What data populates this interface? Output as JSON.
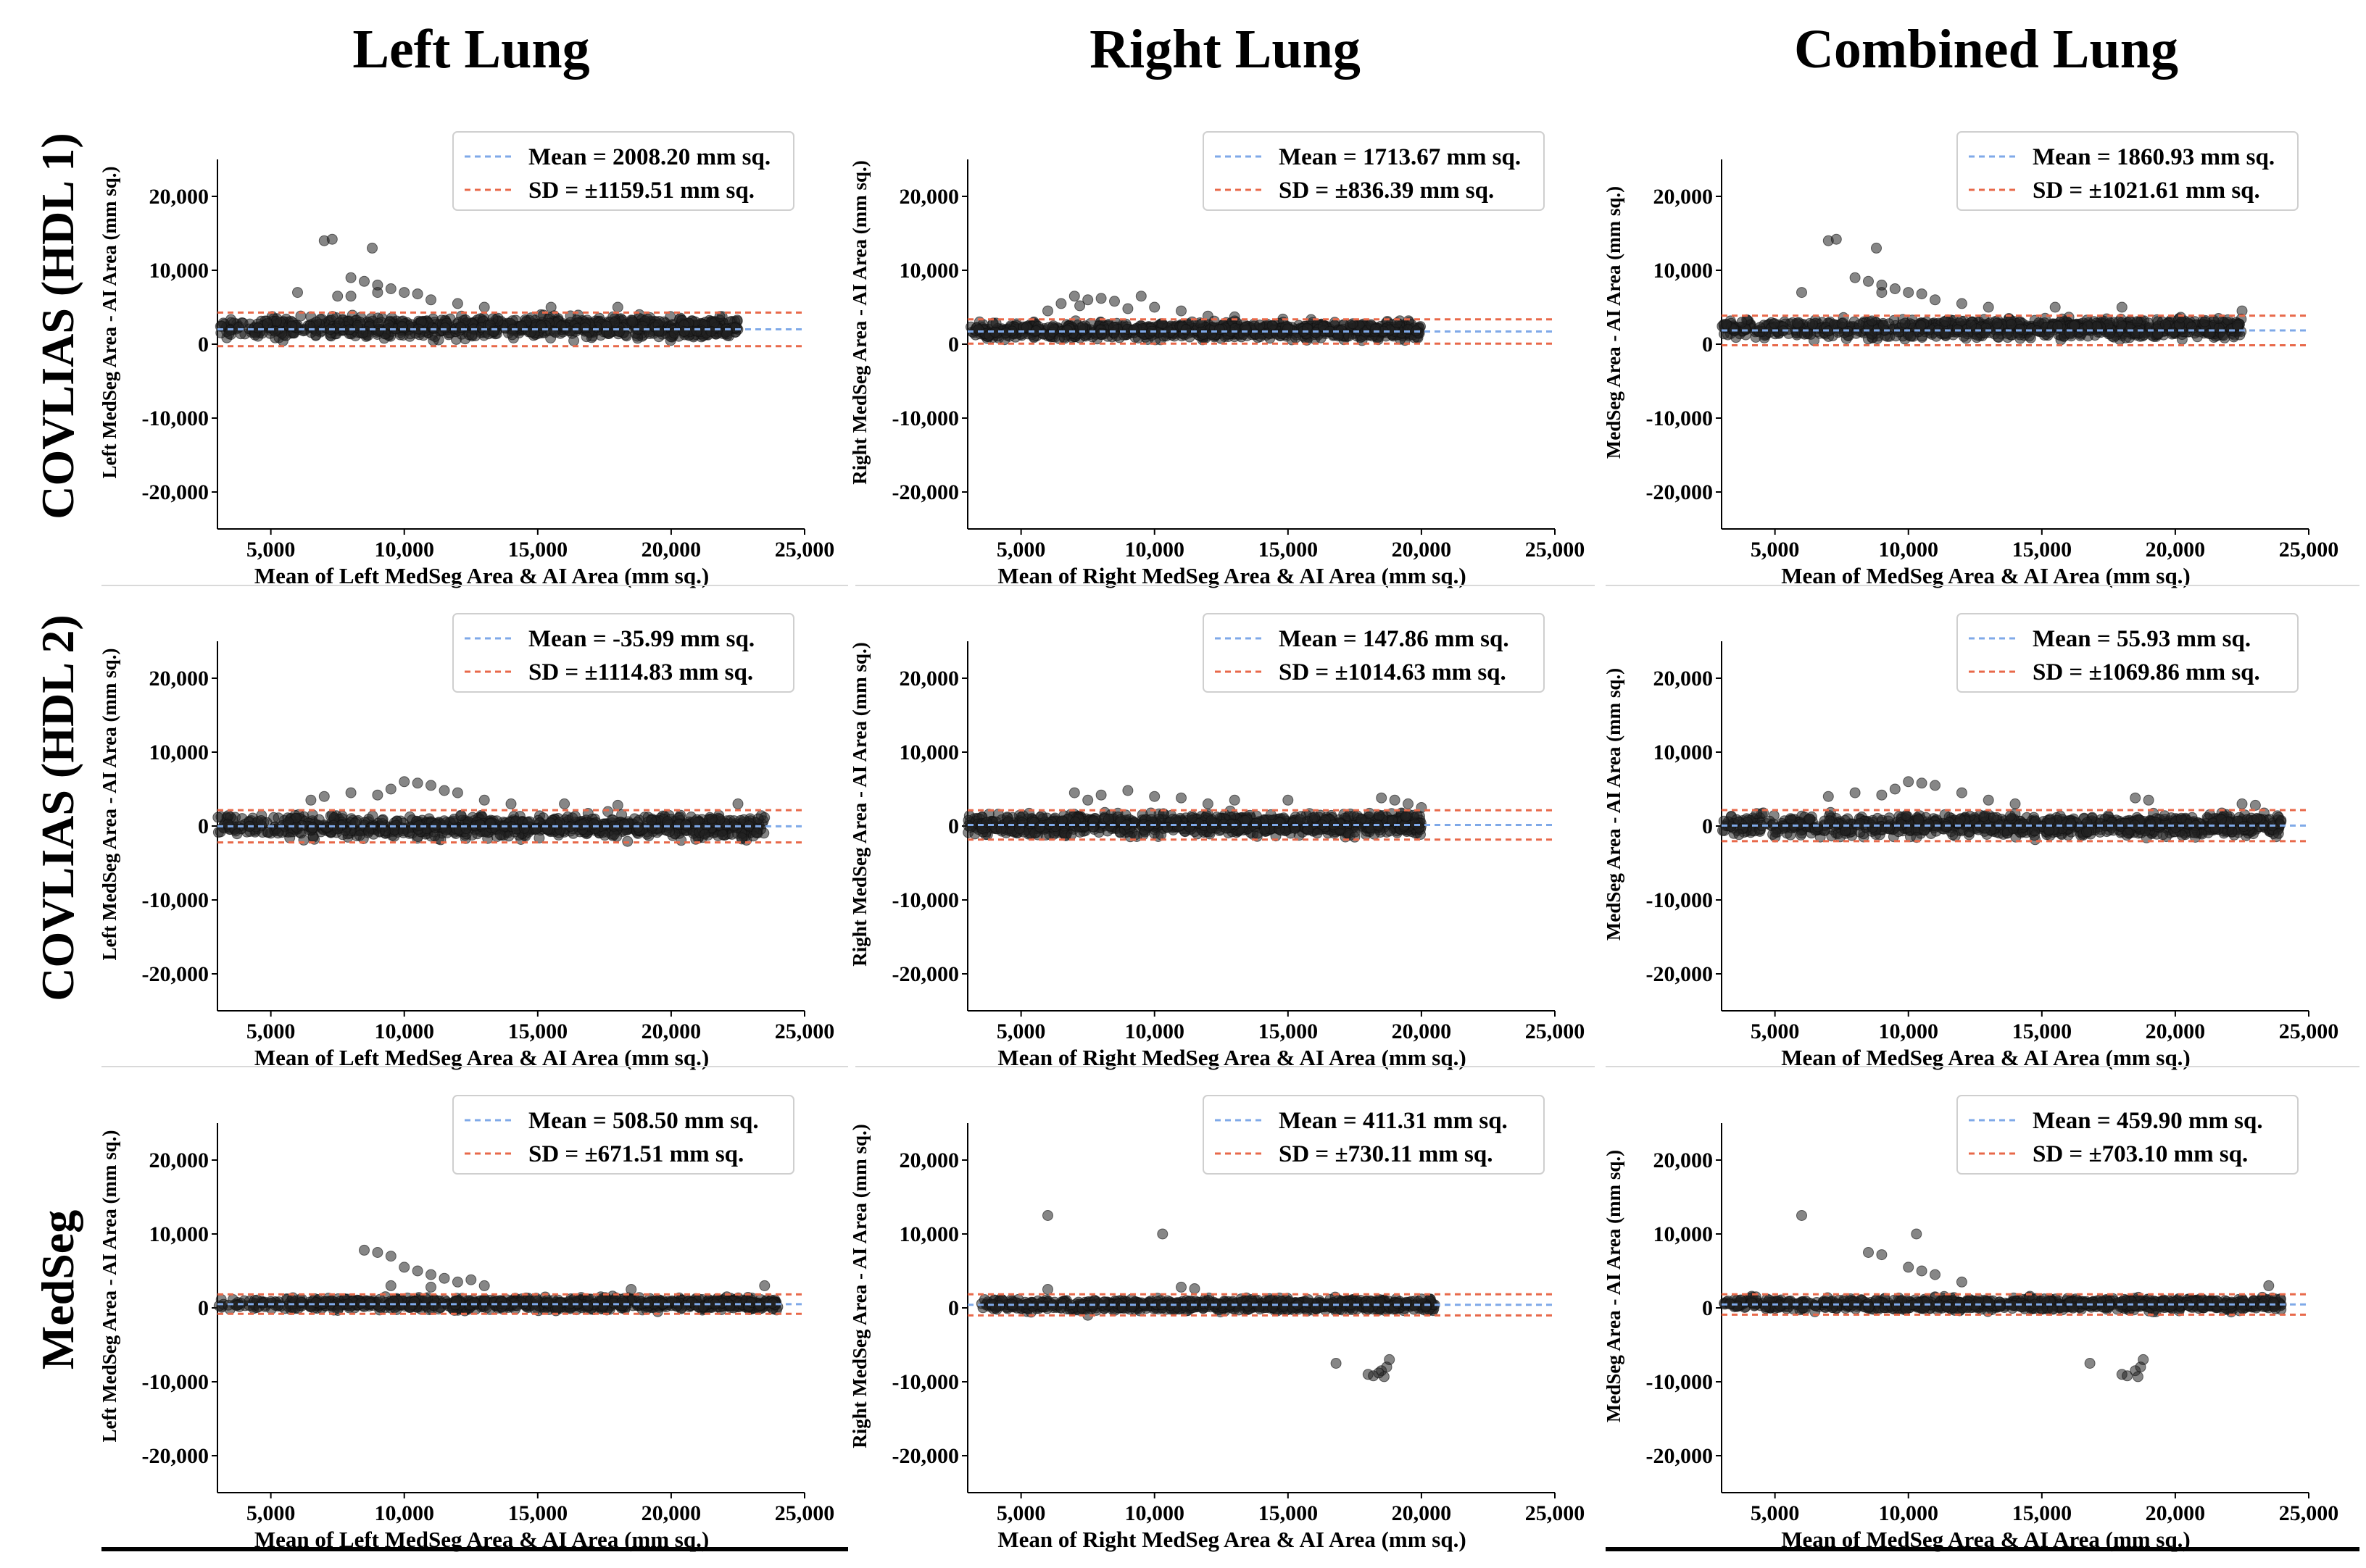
{
  "column_titles": [
    "Left Lung",
    "Right Lung",
    "Combined Lung"
  ],
  "row_titles": [
    "COVLIAS (HDL 1)",
    "COVLIAS (HDL 2)",
    "MedSeg"
  ],
  "colors": {
    "mean_line": "#7fa9e8",
    "sd_line": "#e8694a",
    "points": "#222222",
    "axis": "#000000"
  },
  "chart_data": [
    {
      "type": "scatter",
      "row": "COVLIAS (HDL 1)",
      "column": "Left Lung",
      "xlabel": "Mean of Left MedSeg Area & AI Area (mm sq.)",
      "ylabel": "Left MedSeg Area - AI Area (mm sq.)",
      "xlim": [
        3000,
        25000
      ],
      "ylim": [
        -25000,
        25000
      ],
      "xticks": [
        5000,
        10000,
        15000,
        20000,
        25000
      ],
      "yticks": [
        20000,
        10000,
        0,
        -10000,
        -20000
      ],
      "mean": 2008.2,
      "sd": 1159.51,
      "legend": [
        "Mean = 2008.20 mm sq.",
        "SD = ±1159.51 mm sq."
      ],
      "x_range_points": [
        3000,
        22500
      ],
      "point_band": [
        300,
        4300
      ],
      "outliers": [
        [
          7000,
          14000
        ],
        [
          7300,
          14200
        ],
        [
          8800,
          13000
        ],
        [
          8000,
          9000
        ],
        [
          8500,
          8500
        ],
        [
          9000,
          8000
        ],
        [
          9500,
          7500
        ],
        [
          6000,
          7000
        ],
        [
          10000,
          7000
        ],
        [
          10500,
          6800
        ],
        [
          9000,
          7000
        ],
        [
          8000,
          6500
        ],
        [
          11000,
          6000
        ],
        [
          12000,
          5500
        ],
        [
          13000,
          5000
        ],
        [
          7500,
          6500
        ],
        [
          15500,
          5000
        ],
        [
          18000,
          5000
        ]
      ]
    },
    {
      "type": "scatter",
      "row": "COVLIAS (HDL 1)",
      "column": "Right Lung",
      "xlabel": "Mean of Right MedSeg Area & AI Area (mm sq.)",
      "ylabel": "Right MedSeg Area - AI Area (mm sq.)",
      "xlim": [
        3000,
        25000
      ],
      "ylim": [
        -25000,
        25000
      ],
      "xticks": [
        5000,
        10000,
        15000,
        20000,
        25000
      ],
      "yticks": [
        20000,
        10000,
        0,
        -10000,
        -20000
      ],
      "mean": 1713.67,
      "sd": 836.39,
      "legend": [
        "Mean = 1713.67 mm sq.",
        "SD = ±836.39 mm sq."
      ],
      "x_range_points": [
        3000,
        20000
      ],
      "point_band": [
        200,
        3500
      ],
      "outliers": [
        [
          7000,
          6500
        ],
        [
          7500,
          6000
        ],
        [
          8000,
          6200
        ],
        [
          9500,
          6500
        ],
        [
          6500,
          5500
        ],
        [
          8500,
          5800
        ],
        [
          10000,
          5000
        ],
        [
          7200,
          5200
        ],
        [
          11000,
          4500
        ],
        [
          9000,
          4800
        ],
        [
          6000,
          4500
        ],
        [
          12000,
          3800
        ],
        [
          13000,
          3700
        ],
        [
          19500,
          2000
        ],
        [
          19800,
          1800
        ]
      ]
    },
    {
      "type": "scatter",
      "row": "COVLIAS (HDL 1)",
      "column": "Combined Lung",
      "xlabel": "Mean of MedSeg Area & AI Area (mm sq.)",
      "ylabel": "MedSeg Area - AI Area (mm sq.)",
      "xlim": [
        3000,
        25000
      ],
      "ylim": [
        -25000,
        25000
      ],
      "xticks": [
        5000,
        10000,
        15000,
        20000,
        25000
      ],
      "yticks": [
        20000,
        10000,
        0,
        -10000,
        -20000
      ],
      "mean": 1860.93,
      "sd": 1021.61,
      "legend": [
        "Mean = 1860.93 mm sq.",
        "SD = ±1021.61 mm sq."
      ],
      "x_range_points": [
        3000,
        22500
      ],
      "point_band": [
        300,
        4000
      ],
      "outliers": [
        [
          7000,
          14000
        ],
        [
          7300,
          14200
        ],
        [
          8800,
          13000
        ],
        [
          8000,
          9000
        ],
        [
          8500,
          8500
        ],
        [
          9000,
          8000
        ],
        [
          9500,
          7500
        ],
        [
          6000,
          7000
        ],
        [
          10000,
          7000
        ],
        [
          10500,
          6800
        ],
        [
          9000,
          7000
        ],
        [
          11000,
          6000
        ],
        [
          12000,
          5500
        ],
        [
          13000,
          5000
        ],
        [
          15500,
          5000
        ],
        [
          18000,
          5000
        ],
        [
          22500,
          4500
        ]
      ]
    },
    {
      "type": "scatter",
      "row": "COVLIAS (HDL 2)",
      "column": "Left Lung",
      "xlabel": "Mean of Left MedSeg Area & AI Area (mm sq.)",
      "ylabel": "Left MedSeg Area - AI Area (mm sq.)",
      "xlim": [
        3000,
        25000
      ],
      "ylim": [
        -25000,
        25000
      ],
      "xticks": [
        5000,
        10000,
        15000,
        20000,
        25000
      ],
      "yticks": [
        20000,
        10000,
        0,
        -10000,
        -20000
      ],
      "mean": -35.99,
      "sd": 1114.83,
      "legend": [
        "Mean = -35.99 mm sq.",
        "SD = ±1114.83 mm sq."
      ],
      "x_range_points": [
        3000,
        23500
      ],
      "point_band": [
        -2200,
        2000
      ],
      "outliers": [
        [
          10000,
          6000
        ],
        [
          10500,
          5800
        ],
        [
          11000,
          5500
        ],
        [
          9500,
          5000
        ],
        [
          8000,
          4500
        ],
        [
          7000,
          4000
        ],
        [
          12000,
          4500
        ],
        [
          9000,
          4200
        ],
        [
          11500,
          4800
        ],
        [
          13000,
          3500
        ],
        [
          6500,
          3500
        ],
        [
          14000,
          3000
        ],
        [
          22500,
          3000
        ],
        [
          16000,
          3000
        ],
        [
          18000,
          2800
        ]
      ]
    },
    {
      "type": "scatter",
      "row": "COVLIAS (HDL 2)",
      "column": "Right Lung",
      "xlabel": "Mean of Right MedSeg Area & AI Area (mm sq.)",
      "ylabel": "Right MedSeg Area - AI Area (mm sq.)",
      "xlim": [
        3000,
        25000
      ],
      "ylim": [
        -25000,
        25000
      ],
      "xticks": [
        5000,
        10000,
        15000,
        20000,
        25000
      ],
      "yticks": [
        20000,
        10000,
        0,
        -10000,
        -20000
      ],
      "mean": 147.86,
      "sd": 1014.63,
      "legend": [
        "Mean = 147.86 mm sq.",
        "SD = ±1014.63 mm sq."
      ],
      "x_range_points": [
        3000,
        20000
      ],
      "point_band": [
        -1800,
        2200
      ],
      "outliers": [
        [
          7000,
          4500
        ],
        [
          8000,
          4200
        ],
        [
          9000,
          4800
        ],
        [
          10000,
          4000
        ],
        [
          7500,
          3500
        ],
        [
          11000,
          3800
        ],
        [
          12000,
          3000
        ],
        [
          13000,
          3500
        ],
        [
          18500,
          3800
        ],
        [
          19000,
          3500
        ],
        [
          19500,
          3000
        ],
        [
          20000,
          2500
        ],
        [
          15000,
          3500
        ],
        [
          17500,
          -1500
        ]
      ]
    },
    {
      "type": "scatter",
      "row": "COVLIAS (HDL 2)",
      "column": "Combined Lung",
      "xlabel": "Mean of MedSeg Area & AI Area (mm sq.)",
      "ylabel": "MedSeg Area - AI Area (mm sq.)",
      "xlim": [
        3000,
        25000
      ],
      "ylim": [
        -25000,
        25000
      ],
      "xticks": [
        5000,
        10000,
        15000,
        20000,
        25000
      ],
      "yticks": [
        20000,
        10000,
        0,
        -10000,
        -20000
      ],
      "mean": 55.93,
      "sd": 1069.86,
      "legend": [
        "Mean = 55.93 mm sq.",
        "SD = ±1069.86 mm sq."
      ],
      "x_range_points": [
        3000,
        24000
      ],
      "point_band": [
        -2000,
        2100
      ],
      "outliers": [
        [
          10000,
          6000
        ],
        [
          10500,
          5800
        ],
        [
          11000,
          5500
        ],
        [
          9500,
          5000
        ],
        [
          8000,
          4500
        ],
        [
          7000,
          4000
        ],
        [
          12000,
          4500
        ],
        [
          9000,
          4200
        ],
        [
          13000,
          3500
        ],
        [
          14000,
          3000
        ],
        [
          18500,
          3800
        ],
        [
          19000,
          3500
        ],
        [
          22500,
          3000
        ],
        [
          23000,
          2800
        ]
      ]
    },
    {
      "type": "scatter",
      "row": "MedSeg",
      "column": "Left Lung",
      "xlabel": "Mean of Left MedSeg Area & AI Area (mm sq.)",
      "ylabel": "Left MedSeg Area - AI Area (mm sq.)",
      "xlim": [
        3000,
        25000
      ],
      "ylim": [
        -25000,
        25000
      ],
      "xticks": [
        5000,
        10000,
        15000,
        20000,
        25000
      ],
      "yticks": [
        20000,
        10000,
        0,
        -10000,
        -20000
      ],
      "mean": 508.5,
      "sd": 671.51,
      "legend": [
        "Mean = 508.50 mm sq.",
        "SD = ±671.51 mm sq."
      ],
      "x_range_points": [
        3000,
        24000
      ],
      "point_band": [
        -600,
        1700
      ],
      "outliers": [
        [
          8500,
          7800
        ],
        [
          9000,
          7500
        ],
        [
          9500,
          7000
        ],
        [
          10000,
          5500
        ],
        [
          10500,
          5000
        ],
        [
          11000,
          4500
        ],
        [
          11500,
          4000
        ],
        [
          12000,
          3500
        ],
        [
          9500,
          3000
        ],
        [
          13000,
          3000
        ],
        [
          12500,
          3800
        ],
        [
          11000,
          2800
        ],
        [
          23500,
          3000
        ],
        [
          18500,
          2500
        ]
      ]
    },
    {
      "type": "scatter",
      "row": "MedSeg",
      "column": "Right Lung",
      "xlabel": "Mean of Right MedSeg Area & AI Area (mm sq.)",
      "ylabel": "Right MedSeg Area - AI Area (mm sq.)",
      "xlim": [
        3000,
        25000
      ],
      "ylim": [
        -25000,
        25000
      ],
      "xticks": [
        5000,
        10000,
        15000,
        20000,
        25000
      ],
      "yticks": [
        20000,
        10000,
        0,
        -10000,
        -20000
      ],
      "mean": 411.31,
      "sd": 730.11,
      "legend": [
        "Mean = 411.31 mm sq.",
        "SD = ±730.11 mm sq."
      ],
      "x_range_points": [
        3500,
        20500
      ],
      "point_band": [
        -700,
        1500
      ],
      "outliers": [
        [
          6000,
          12500
        ],
        [
          10300,
          10000
        ],
        [
          16800,
          -7500
        ],
        [
          18000,
          -9000
        ],
        [
          18200,
          -9200
        ],
        [
          18500,
          -8500
        ],
        [
          18700,
          -8000
        ],
        [
          18800,
          -7000
        ],
        [
          18600,
          -9300
        ],
        [
          18400,
          -8800
        ],
        [
          6000,
          2500
        ],
        [
          11000,
          2800
        ],
        [
          11500,
          2600
        ],
        [
          20000,
          1200
        ],
        [
          7500,
          -1000
        ]
      ]
    },
    {
      "type": "scatter",
      "row": "MedSeg",
      "column": "Combined Lung",
      "xlabel": "Mean of MedSeg Area & AI Area (mm sq.)",
      "ylabel": "MedSeg Area - AI Area (mm sq.)",
      "xlim": [
        3000,
        25000
      ],
      "ylim": [
        -25000,
        25000
      ],
      "xticks": [
        5000,
        10000,
        15000,
        20000,
        25000
      ],
      "yticks": [
        20000,
        10000,
        0,
        -10000,
        -20000
      ],
      "mean": 459.9,
      "sd": 703.1,
      "legend": [
        "Mean = 459.90 mm sq.",
        "SD = ±703.10 mm sq."
      ],
      "x_range_points": [
        3000,
        24000
      ],
      "point_band": [
        -700,
        1700
      ],
      "outliers": [
        [
          6000,
          12500
        ],
        [
          10300,
          10000
        ],
        [
          8500,
          7500
        ],
        [
          9000,
          7200
        ],
        [
          10000,
          5500
        ],
        [
          10500,
          5000
        ],
        [
          11000,
          4500
        ],
        [
          16800,
          -7500
        ],
        [
          18000,
          -9000
        ],
        [
          18200,
          -9200
        ],
        [
          18500,
          -8500
        ],
        [
          18700,
          -8000
        ],
        [
          18800,
          -7000
        ],
        [
          18600,
          -9300
        ],
        [
          12000,
          3500
        ],
        [
          23500,
          3000
        ]
      ]
    }
  ]
}
